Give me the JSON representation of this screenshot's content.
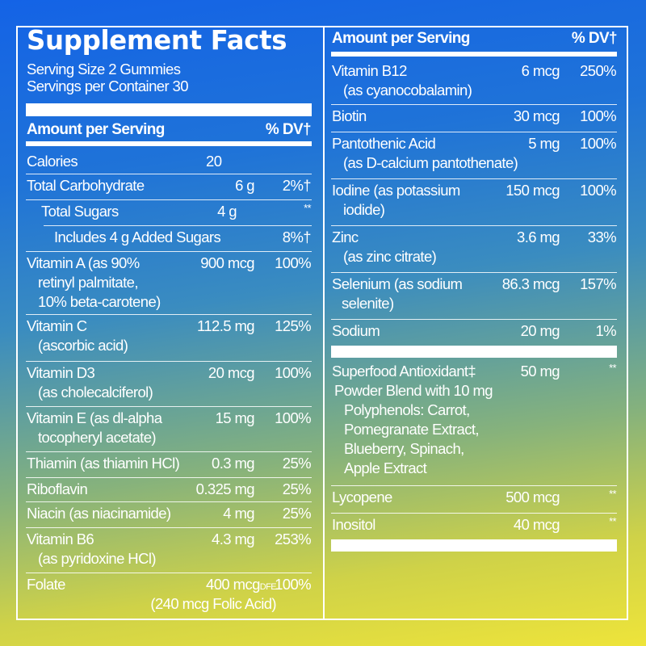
{
  "title": "Supplement Facts",
  "serving_size": "Serving Size 2 Gummies",
  "servings_per_container": "Servings per Container 30",
  "header": {
    "amount": "Amount per Serving",
    "dv": "% DV†"
  },
  "left_rows": [
    {
      "name": [
        "Calories"
      ],
      "amount": "20",
      "dv": ""
    },
    {
      "name": [
        "Total Carbohydrate"
      ],
      "amount": "6 g",
      "dv": "2%†"
    },
    {
      "name": [
        "Total Sugars"
      ],
      "amount": "4 g",
      "dv": "**"
    },
    {
      "name": [
        "Includes 4 g Added Sugars"
      ],
      "amount": "",
      "dv": "8%†"
    },
    {
      "name": [
        "Vitamin A (as 90%",
        "retinyl palmitate,",
        "10% beta-carotene)"
      ],
      "amount": "900 mcg",
      "dv": "100%"
    },
    {
      "name": [
        "Vitamin C",
        "(ascorbic acid)"
      ],
      "amount": "112.5 mg",
      "dv": "125%"
    },
    {
      "name": [
        "Vitamin D3",
        "(as cholecalciferol)"
      ],
      "amount": "20 mcg",
      "dv": "100%"
    },
    {
      "name": [
        "Vitamin E (as dl-alpha",
        "tocopheryl acetate)"
      ],
      "amount": "15 mg",
      "dv": "100%"
    },
    {
      "name": [
        "Thiamin (as thiamin HCl)"
      ],
      "amount": "0.3 mg",
      "dv": "25%"
    },
    {
      "name": [
        "Riboflavin"
      ],
      "amount": "0.325 mg",
      "dv": "25%"
    },
    {
      "name": [
        "Niacin (as niacinamide)"
      ],
      "amount": "4 mg",
      "dv": "25%"
    },
    {
      "name": [
        "Vitamin B6",
        "(as pyridoxine HCl)"
      ],
      "amount": "4.3 mg",
      "dv": "253%"
    },
    {
      "name": [
        "Folate"
      ],
      "amount": "400 mcg",
      "amount_unit": "DFE",
      "amount_note": "(240 mcg Folic Acid)",
      "dv": "100%"
    }
  ],
  "right_rows": [
    {
      "name": [
        "Vitamin B12",
        "(as cyanocobalamin)"
      ],
      "amount": "6 mcg",
      "dv": "250%"
    },
    {
      "name": [
        "Biotin"
      ],
      "amount": "30 mcg",
      "dv": "100%"
    },
    {
      "name": [
        "Pantothenic Acid",
        "(as D-calcium pantothenate)"
      ],
      "amount": "5 mg",
      "dv": "100%"
    },
    {
      "name": [
        "Iodine (as potassium",
        "iodide)"
      ],
      "amount": "150 mcg",
      "dv": "100%"
    },
    {
      "name": [
        "Zinc",
        "(as zinc citrate)"
      ],
      "amount": "3.6 mg",
      "dv": "33%"
    },
    {
      "name": [
        "Selenium (as sodium",
        "selenite)"
      ],
      "amount": "86.3 mcg",
      "dv": "157%"
    },
    {
      "name": [
        "Sodium"
      ],
      "amount": "20 mg",
      "dv": "1%"
    },
    {
      "name": [
        "Superfood Antioxidant‡",
        "Powder Blend with 10 mg",
        "Polyphenols: Carrot,",
        "Pomegranate Extract,",
        "Blueberry, Spinach,",
        "Apple Extract"
      ],
      "amount": "50 mg",
      "dv": "**"
    },
    {
      "name": [
        "Lycopene"
      ],
      "amount": "500 mcg",
      "dv": "**"
    },
    {
      "name": [
        "Inositol"
      ],
      "amount": "40 mcg",
      "dv": "**"
    }
  ]
}
